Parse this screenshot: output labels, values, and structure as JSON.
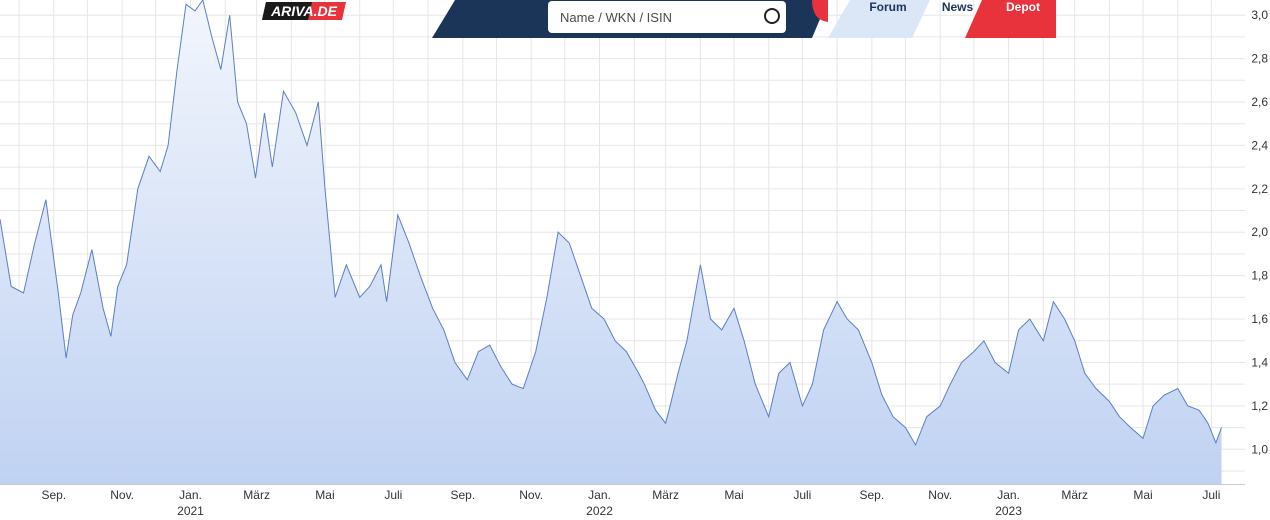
{
  "header": {
    "logo_text": "ARIVA.DE",
    "search_placeholder": "Name / WKN / ISIN",
    "nav": {
      "forum": "Forum",
      "news": "News",
      "depot": "Depot"
    },
    "colors": {
      "navy": "#1b3558",
      "red": "#e8323c",
      "light_blue": "#dbe6f7"
    }
  },
  "chart_data": {
    "type": "area",
    "title": "",
    "xlabel": "",
    "ylabel": "",
    "ylim": [
      0.84,
      3.07
    ],
    "y_ticks": [
      "1,0",
      "1,2",
      "1,4",
      "1,6",
      "1,8",
      "2,0",
      "2,2",
      "2,4",
      "2,6",
      "2,8",
      "3,0"
    ],
    "y_tick_values": [
      1.0,
      1.2,
      1.4,
      1.6,
      1.8,
      2.0,
      2.2,
      2.4,
      2.6,
      2.8,
      3.0
    ],
    "xlim": [
      "2020-07-15",
      "2023-07-31"
    ],
    "x_ticks": [
      {
        "label": "Sep.",
        "date": "2020-09-01"
      },
      {
        "label": "Nov.",
        "date": "2020-11-01"
      },
      {
        "label": "Jan.",
        "date": "2021-01-01"
      },
      {
        "label": "März",
        "date": "2021-03-01"
      },
      {
        "label": "Mai",
        "date": "2021-05-01"
      },
      {
        "label": "Juli",
        "date": "2021-07-01"
      },
      {
        "label": "Sep.",
        "date": "2021-09-01"
      },
      {
        "label": "Nov.",
        "date": "2021-11-01"
      },
      {
        "label": "Jan.",
        "date": "2022-01-01"
      },
      {
        "label": "März",
        "date": "2022-03-01"
      },
      {
        "label": "Mai",
        "date": "2022-05-01"
      },
      {
        "label": "Juli",
        "date": "2022-07-01"
      },
      {
        "label": "Sep.",
        "date": "2022-09-01"
      },
      {
        "label": "Nov.",
        "date": "2022-11-01"
      },
      {
        "label": "Jan.",
        "date": "2023-01-01"
      },
      {
        "label": "März",
        "date": "2023-03-01"
      },
      {
        "label": "Mai",
        "date": "2023-05-01"
      },
      {
        "label": "Juli",
        "date": "2023-07-01"
      }
    ],
    "years": [
      {
        "label": "2021",
        "date": "2021-01-01"
      },
      {
        "label": "2022",
        "date": "2022-01-01"
      },
      {
        "label": "2023",
        "date": "2023-01-01"
      }
    ],
    "grid": true,
    "y_axis_position": "right",
    "line_color": "#5b7fc2",
    "fill_top_color": "#f2f6fd",
    "fill_bottom_color": "#c0d2f2",
    "series": [
      {
        "x": [
          "2020-07-15",
          "2020-07-25",
          "2020-08-05",
          "2020-08-15",
          "2020-08-25",
          "2020-09-05",
          "2020-09-12",
          "2020-09-18",
          "2020-09-25",
          "2020-10-05",
          "2020-10-15",
          "2020-10-22",
          "2020-10-28",
          "2020-11-05",
          "2020-11-15",
          "2020-11-25",
          "2020-12-05",
          "2020-12-12",
          "2020-12-20",
          "2020-12-28",
          "2021-01-05",
          "2021-01-12",
          "2021-01-20",
          "2021-01-28",
          "2021-02-05",
          "2021-02-12",
          "2021-02-20",
          "2021-02-28",
          "2021-03-08",
          "2021-03-15",
          "2021-03-25",
          "2021-04-05",
          "2021-04-15",
          "2021-04-25",
          "2021-05-01",
          "2021-05-10",
          "2021-05-20",
          "2021-06-01",
          "2021-06-10",
          "2021-06-20",
          "2021-06-25",
          "2021-07-05",
          "2021-07-15",
          "2021-07-25",
          "2021-08-05",
          "2021-08-15",
          "2021-08-25",
          "2021-09-05",
          "2021-09-15",
          "2021-09-25",
          "2021-10-05",
          "2021-10-15",
          "2021-10-25",
          "2021-11-05",
          "2021-11-15",
          "2021-11-25",
          "2021-12-05",
          "2021-12-15",
          "2021-12-25",
          "2022-01-05",
          "2022-01-15",
          "2022-01-25",
          "2022-02-05",
          "2022-02-10",
          "2022-02-20",
          "2022-03-01",
          "2022-03-05",
          "2022-03-12",
          "2022-03-20",
          "2022-04-01",
          "2022-04-10",
          "2022-04-20",
          "2022-05-01",
          "2022-05-10",
          "2022-05-20",
          "2022-06-01",
          "2022-06-10",
          "2022-06-20",
          "2022-07-01",
          "2022-07-10",
          "2022-07-20",
          "2022-08-01",
          "2022-08-10",
          "2022-08-20",
          "2022-09-01",
          "2022-09-10",
          "2022-09-20",
          "2022-10-01",
          "2022-10-10",
          "2022-10-20",
          "2022-11-01",
          "2022-11-10",
          "2022-11-20",
          "2022-12-01",
          "2022-12-10",
          "2022-12-20",
          "2023-01-01",
          "2023-01-10",
          "2023-01-20",
          "2023-02-01",
          "2023-02-10",
          "2023-02-20",
          "2023-03-01",
          "2023-03-10",
          "2023-03-20",
          "2023-04-01",
          "2023-04-10",
          "2023-04-20",
          "2023-05-01",
          "2023-05-10",
          "2023-05-20",
          "2023-06-01",
          "2023-06-10",
          "2023-06-20",
          "2023-06-28",
          "2023-07-05",
          "2023-07-10"
        ],
        "y": [
          2.06,
          1.75,
          1.72,
          1.95,
          2.15,
          1.72,
          1.42,
          1.62,
          1.72,
          1.92,
          1.65,
          1.52,
          1.75,
          1.85,
          2.2,
          2.35,
          2.28,
          2.4,
          2.75,
          3.05,
          3.02,
          3.07,
          2.9,
          2.75,
          3.0,
          2.6,
          2.5,
          2.25,
          2.55,
          2.3,
          2.65,
          2.55,
          2.4,
          2.6,
          2.2,
          1.7,
          1.85,
          1.7,
          1.75,
          1.85,
          1.68,
          2.08,
          1.95,
          1.8,
          1.65,
          1.55,
          1.4,
          1.32,
          1.45,
          1.48,
          1.38,
          1.3,
          1.28,
          1.45,
          1.7,
          2.0,
          1.95,
          1.8,
          1.65,
          1.6,
          1.5,
          1.45,
          1.35,
          1.3,
          1.18,
          1.12,
          1.2,
          1.35,
          1.5,
          1.85,
          1.6,
          1.55,
          1.65,
          1.5,
          1.3,
          1.15,
          1.35,
          1.4,
          1.2,
          1.3,
          1.55,
          1.68,
          1.6,
          1.55,
          1.4,
          1.25,
          1.15,
          1.1,
          1.02,
          1.15,
          1.2,
          1.3,
          1.4,
          1.45,
          1.5,
          1.4,
          1.35,
          1.55,
          1.6,
          1.5,
          1.68,
          1.6,
          1.5,
          1.35,
          1.28,
          1.22,
          1.15,
          1.1,
          1.05,
          1.2,
          1.25,
          1.28,
          1.2,
          1.18,
          1.12,
          1.03,
          1.1
        ]
      }
    ]
  }
}
